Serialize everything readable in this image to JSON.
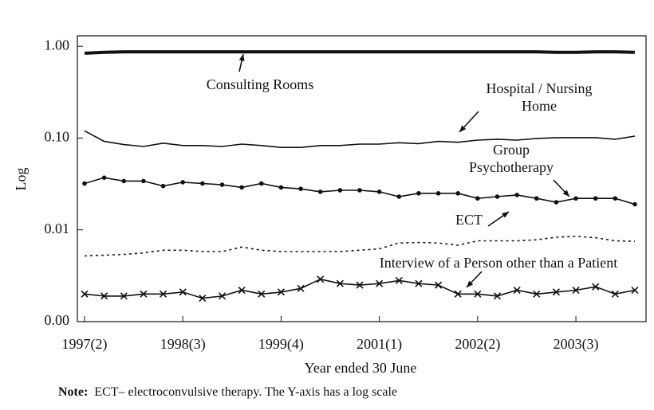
{
  "chart_data": {
    "type": "line",
    "y_label": "Log",
    "x_label": "Year ended 30 June",
    "note": {
      "label": "Note:",
      "text": "ECT– electroconvulsive therapy. The Y-axis has a log scale"
    },
    "log_y": true,
    "ylim": [
      0.001,
      1.3
    ],
    "yticks": [
      {
        "value": 0.001,
        "label": "0.00"
      },
      {
        "value": 0.01,
        "label": "0.01"
      },
      {
        "value": 0.1,
        "label": "0.10"
      },
      {
        "value": 1,
        "label": "1.00"
      }
    ],
    "categories": [
      "1997(2)",
      null,
      null,
      null,
      null,
      "1998(3)",
      null,
      null,
      null,
      null,
      "1999(4)",
      null,
      null,
      null,
      null,
      "2001(1)",
      null,
      null,
      null,
      null,
      "2002(2)",
      null,
      null,
      null,
      null,
      "2003(3)",
      null,
      null,
      null
    ],
    "series": [
      {
        "label": [
          "Consulting Rooms"
        ],
        "color": "#111",
        "width": 4,
        "marker": "none",
        "dash": false,
        "values": [
          0.84,
          0.86,
          0.87,
          0.87,
          0.87,
          0.87,
          0.87,
          0.87,
          0.87,
          0.87,
          0.87,
          0.87,
          0.87,
          0.87,
          0.87,
          0.87,
          0.87,
          0.87,
          0.87,
          0.87,
          0.87,
          0.87,
          0.87,
          0.87,
          0.86,
          0.86,
          0.87,
          0.87,
          0.86
        ]
      },
      {
        "label": [
          "Hospital / Nursing",
          "Home"
        ],
        "color": "#111",
        "width": 1.6,
        "marker": "none",
        "dash": false,
        "values": [
          0.12,
          0.092,
          0.085,
          0.081,
          0.088,
          0.083,
          0.083,
          0.081,
          0.086,
          0.083,
          0.079,
          0.079,
          0.083,
          0.083,
          0.086,
          0.086,
          0.089,
          0.087,
          0.092,
          0.09,
          0.095,
          0.097,
          0.095,
          0.099,
          0.101,
          0.101,
          0.101,
          0.097,
          0.105
        ]
      },
      {
        "label": [
          "Group",
          "Psychotherapy"
        ],
        "color": "#111",
        "width": 1.6,
        "marker": "dot",
        "dash": false,
        "values": [
          0.032,
          0.037,
          0.034,
          0.034,
          0.03,
          0.033,
          0.032,
          0.031,
          0.029,
          0.032,
          0.029,
          0.028,
          0.026,
          0.027,
          0.027,
          0.026,
          0.023,
          0.025,
          0.025,
          0.025,
          0.022,
          0.023,
          0.024,
          0.022,
          0.02,
          0.022,
          0.022,
          0.022,
          0.019
        ]
      },
      {
        "label": [
          "ECT"
        ],
        "color": "#111",
        "width": 1.6,
        "marker": "none",
        "dash": true,
        "values": [
          0.0052,
          0.0053,
          0.0054,
          0.0056,
          0.006,
          0.006,
          0.0058,
          0.0058,
          0.0065,
          0.006,
          0.0058,
          0.0058,
          0.0058,
          0.0058,
          0.006,
          0.0062,
          0.0072,
          0.0073,
          0.0072,
          0.0068,
          0.0076,
          0.0076,
          0.0076,
          0.0078,
          0.0083,
          0.0085,
          0.0082,
          0.0076,
          0.0075
        ]
      },
      {
        "label": [
          "Interview of a Person other than a Patient"
        ],
        "color": "#111",
        "width": 1.6,
        "marker": "x",
        "dash": false,
        "values": [
          0.002,
          0.0019,
          0.0019,
          0.002,
          0.002,
          0.0021,
          0.0018,
          0.0019,
          0.0022,
          0.002,
          0.0021,
          0.0023,
          0.0029,
          0.0026,
          0.0025,
          0.0026,
          0.0028,
          0.0026,
          0.0025,
          0.002,
          0.002,
          0.0019,
          0.0022,
          0.002,
          0.0021,
          0.0022,
          0.0024,
          0.002,
          0.0022
        ]
      }
    ]
  }
}
